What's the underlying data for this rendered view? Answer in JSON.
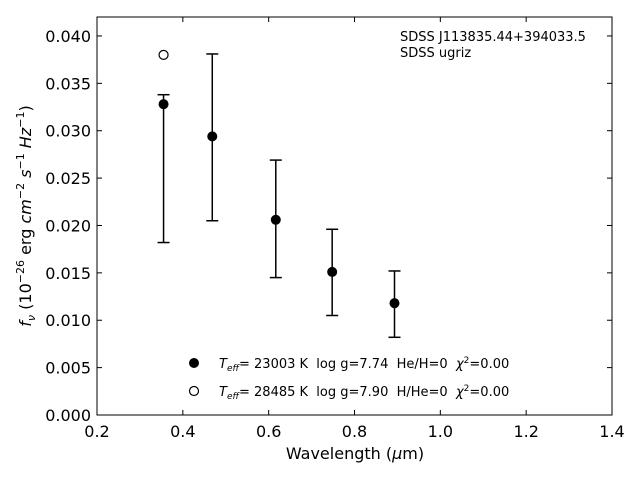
{
  "chart_data": {
    "type": "scatter",
    "xlabel_main": "Wavelength (",
    "xlabel_unit_mu": "μ",
    "xlabel_unit_rest": "m)",
    "ylabel_parts": {
      "f": "f",
      "nu": "ν",
      "open": " (10",
      "exp1": "−26",
      "erg": " erg ",
      "cm": "cm",
      "exp2": "−2",
      "s": " s",
      "exp3": "−1",
      "hz": " Hz",
      "exp4": "−1",
      "close": ")"
    },
    "xlim": [
      0.2,
      1.4
    ],
    "ylim": [
      0.0,
      0.042
    ],
    "x_ticks": [
      0.2,
      0.4,
      0.6,
      0.8,
      1.0,
      1.2,
      1.4
    ],
    "x_tick_labels": [
      "0.2",
      "0.4",
      "0.6",
      "0.8",
      "1.0",
      "1.2",
      "1.4"
    ],
    "y_ticks": [
      0.0,
      0.005,
      0.01,
      0.015,
      0.02,
      0.025,
      0.03,
      0.035,
      0.04
    ],
    "y_tick_labels": [
      "0.000",
      "0.005",
      "0.010",
      "0.015",
      "0.020",
      "0.025",
      "0.030",
      "0.035",
      "0.040"
    ],
    "annotation_lines": [
      "SDSS J113835.44+394033.5",
      "SDSS ugriz"
    ],
    "observed": {
      "x": [
        0.3551,
        0.4686,
        0.6166,
        0.748,
        0.8932
      ],
      "y": [
        0.0328,
        0.0294,
        0.0206,
        0.0151,
        0.0118
      ],
      "yerr_low": [
        0.0182,
        0.0205,
        0.0145,
        0.0105,
        0.0082
      ],
      "yerr_high": [
        0.0338,
        0.0381,
        0.0269,
        0.0196,
        0.0152
      ]
    },
    "series": [
      {
        "marker": "filled",
        "x": [
          0.3551,
          0.4686,
          0.6166,
          0.748,
          0.8932
        ],
        "y": [
          0.0328,
          0.0294,
          0.0206,
          0.0151,
          0.0118
        ],
        "legend": {
          "T": "T",
          "sub": "eff",
          "text": "= 23003 K  log g=7.74  He/H=0  ",
          "chi": "χ",
          "chi_exp": "2",
          "chi_val": "=0.00"
        }
      },
      {
        "marker": "open",
        "x": [
          0.3551
        ],
        "y": [
          0.038
        ],
        "legend": {
          "T": "T",
          "sub": "eff",
          "text": "= 28485 K  log g=7.90  H/He=0  ",
          "chi": "χ",
          "chi_exp": "2",
          "chi_val": "=0.00"
        }
      }
    ],
    "legend_position": "lower-center",
    "grid": false
  }
}
